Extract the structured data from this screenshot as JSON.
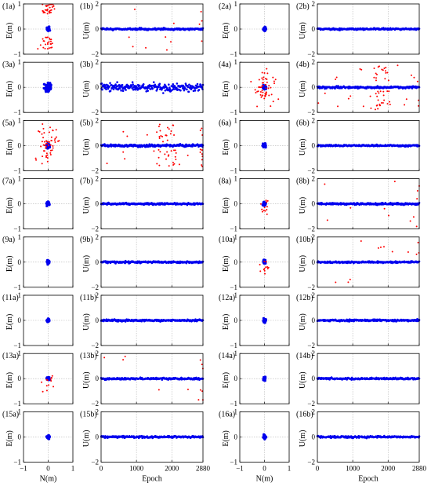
{
  "figure": {
    "background": "#ffffff",
    "axis_color": "#000000",
    "grid_color": "#b4b4b4",
    "data_color": "#0000ee",
    "outlier_color": "#ff0000",
    "column_pair_offsets": [
      "left",
      "right"
    ]
  },
  "labels": {
    "scatter_ylabel": "E(m)",
    "series_ylabel": "U(m)",
    "scatter_xlabel": "N(m)",
    "series_xlabel": "Epoch"
  },
  "ticks": {
    "scatter_x": [
      -1,
      0,
      1
    ],
    "scatter_y": [
      -1,
      0,
      1
    ],
    "series_x": [
      0,
      1000,
      2000,
      2880
    ],
    "series_y": [
      -2,
      0,
      2
    ]
  },
  "chart_data": [
    {
      "panel": "1a",
      "type": "scatter",
      "xlabel": "N(m)",
      "ylabel": "E(m)",
      "xlim": [
        -1,
        1
      ],
      "ylim": [
        -1,
        1
      ],
      "grid": true,
      "core_spread": 0.025,
      "outliers": "many"
    },
    {
      "panel": "1b",
      "type": "scatter",
      "xlabel": "Epoch",
      "ylabel": "U(m)",
      "xlim": [
        0,
        2880
      ],
      "ylim": [
        -2,
        2
      ],
      "grid": true,
      "band_halfwidth": 0.08,
      "outliers": "some"
    },
    {
      "panel": "2a",
      "type": "scatter",
      "xlabel": "N(m)",
      "ylabel": "E(m)",
      "xlim": [
        -1,
        1
      ],
      "ylim": [
        -1,
        1
      ],
      "grid": true,
      "core_spread": 0.025,
      "outliers": "none"
    },
    {
      "panel": "2b",
      "type": "scatter",
      "xlabel": "Epoch",
      "ylabel": "U(m)",
      "xlim": [
        0,
        2880
      ],
      "ylim": [
        -2,
        2
      ],
      "grid": true,
      "band_halfwidth": 0.08,
      "outliers": "none"
    },
    {
      "panel": "3a",
      "type": "scatter",
      "xlabel": "N(m)",
      "ylabel": "E(m)",
      "xlim": [
        -1,
        1
      ],
      "ylim": [
        -1,
        1
      ],
      "grid": true,
      "core_spread": 0.07,
      "outliers": "none"
    },
    {
      "panel": "3b",
      "type": "scatter",
      "xlabel": "Epoch",
      "ylabel": "U(m)",
      "xlim": [
        0,
        2880
      ],
      "ylim": [
        -2,
        2
      ],
      "grid": true,
      "band_halfwidth": 0.35,
      "outliers": "none"
    },
    {
      "panel": "4a",
      "type": "scatter",
      "xlabel": "N(m)",
      "ylabel": "E(m)",
      "xlim": [
        -1,
        1
      ],
      "ylim": [
        -1,
        1
      ],
      "grid": true,
      "core_spread": 0.03,
      "outliers": "many"
    },
    {
      "panel": "4b",
      "type": "scatter",
      "xlabel": "Epoch",
      "ylabel": "U(m)",
      "xlim": [
        0,
        2880
      ],
      "ylim": [
        -2,
        2
      ],
      "grid": true,
      "band_halfwidth": 0.1,
      "outliers": "many"
    },
    {
      "panel": "5a",
      "type": "scatter",
      "xlabel": "N(m)",
      "ylabel": "E(m)",
      "xlim": [
        -1,
        1
      ],
      "ylim": [
        -1,
        1
      ],
      "grid": true,
      "core_spread": 0.03,
      "outliers": "many"
    },
    {
      "panel": "5b",
      "type": "scatter",
      "xlabel": "Epoch",
      "ylabel": "U(m)",
      "xlim": [
        0,
        2880
      ],
      "ylim": [
        -2,
        2
      ],
      "grid": true,
      "band_halfwidth": 0.1,
      "outliers": "many"
    },
    {
      "panel": "6a",
      "type": "scatter",
      "xlabel": "N(m)",
      "ylabel": "E(m)",
      "xlim": [
        -1,
        1
      ],
      "ylim": [
        -1,
        1
      ],
      "grid": true,
      "core_spread": 0.025,
      "outliers": "none"
    },
    {
      "panel": "6b",
      "type": "scatter",
      "xlabel": "Epoch",
      "ylabel": "U(m)",
      "xlim": [
        0,
        2880
      ],
      "ylim": [
        -2,
        2
      ],
      "grid": true,
      "band_halfwidth": 0.08,
      "outliers": "none"
    },
    {
      "panel": "7a",
      "type": "scatter",
      "xlabel": "N(m)",
      "ylabel": "E(m)",
      "xlim": [
        -1,
        1
      ],
      "ylim": [
        -1,
        1
      ],
      "grid": true,
      "core_spread": 0.025,
      "outliers": "none"
    },
    {
      "panel": "7b",
      "type": "scatter",
      "xlabel": "Epoch",
      "ylabel": "U(m)",
      "xlim": [
        0,
        2880
      ],
      "ylim": [
        -2,
        2
      ],
      "grid": true,
      "band_halfwidth": 0.08,
      "outliers": "none"
    },
    {
      "panel": "8a",
      "type": "scatter",
      "xlabel": "N(m)",
      "ylabel": "E(m)",
      "xlim": [
        -1,
        1
      ],
      "ylim": [
        -1,
        1
      ],
      "grid": true,
      "core_spread": 0.025,
      "outliers": "some"
    },
    {
      "panel": "8b",
      "type": "scatter",
      "xlabel": "Epoch",
      "ylabel": "U(m)",
      "xlim": [
        0,
        2880
      ],
      "ylim": [
        -2,
        2
      ],
      "grid": true,
      "band_halfwidth": 0.08,
      "outliers": "some"
    },
    {
      "panel": "9a",
      "type": "scatter",
      "xlabel": "N(m)",
      "ylabel": "E(m)",
      "xlim": [
        -1,
        1
      ],
      "ylim": [
        -1,
        1
      ],
      "grid": true,
      "core_spread": 0.025,
      "outliers": "none"
    },
    {
      "panel": "9b",
      "type": "scatter",
      "xlabel": "Epoch",
      "ylabel": "U(m)",
      "xlim": [
        0,
        2880
      ],
      "ylim": [
        -2,
        2
      ],
      "grid": true,
      "band_halfwidth": 0.08,
      "outliers": "none"
    },
    {
      "panel": "10a",
      "type": "scatter",
      "xlabel": "N(m)",
      "ylabel": "E(m)",
      "xlim": [
        -1,
        1
      ],
      "ylim": [
        -1,
        1
      ],
      "grid": true,
      "core_spread": 0.025,
      "outliers": "some"
    },
    {
      "panel": "10b",
      "type": "scatter",
      "xlabel": "Epoch",
      "ylabel": "U(m)",
      "xlim": [
        0,
        2880
      ],
      "ylim": [
        -2,
        2
      ],
      "grid": true,
      "band_halfwidth": 0.08,
      "outliers": "some"
    },
    {
      "panel": "11a",
      "type": "scatter",
      "xlabel": "N(m)",
      "ylabel": "E(m)",
      "xlim": [
        -1,
        1
      ],
      "ylim": [
        -1,
        1
      ],
      "grid": true,
      "core_spread": 0.025,
      "outliers": "none"
    },
    {
      "panel": "11b",
      "type": "scatter",
      "xlabel": "Epoch",
      "ylabel": "U(m)",
      "xlim": [
        0,
        2880
      ],
      "ylim": [
        -2,
        2
      ],
      "grid": true,
      "band_halfwidth": 0.08,
      "outliers": "none"
    },
    {
      "panel": "12a",
      "type": "scatter",
      "xlabel": "N(m)",
      "ylabel": "E(m)",
      "xlim": [
        -1,
        1
      ],
      "ylim": [
        -1,
        1
      ],
      "grid": true,
      "core_spread": 0.025,
      "outliers": "none"
    },
    {
      "panel": "12b",
      "type": "scatter",
      "xlabel": "Epoch",
      "ylabel": "U(m)",
      "xlim": [
        0,
        2880
      ],
      "ylim": [
        -2,
        2
      ],
      "grid": true,
      "band_halfwidth": 0.08,
      "outliers": "none"
    },
    {
      "panel": "13a",
      "type": "scatter",
      "xlabel": "N(m)",
      "ylabel": "E(m)",
      "xlim": [
        -1,
        1
      ],
      "ylim": [
        -1,
        1
      ],
      "grid": true,
      "core_spread": 0.025,
      "outliers": "some"
    },
    {
      "panel": "13b",
      "type": "scatter",
      "xlabel": "Epoch",
      "ylabel": "U(m)",
      "xlim": [
        0,
        2880
      ],
      "ylim": [
        -2,
        2
      ],
      "grid": true,
      "band_halfwidth": 0.08,
      "outliers": "some"
    },
    {
      "panel": "14a",
      "type": "scatter",
      "xlabel": "N(m)",
      "ylabel": "E(m)",
      "xlim": [
        -1,
        1
      ],
      "ylim": [
        -1,
        1
      ],
      "grid": true,
      "core_spread": 0.025,
      "outliers": "none"
    },
    {
      "panel": "14b",
      "type": "scatter",
      "xlabel": "Epoch",
      "ylabel": "U(m)",
      "xlim": [
        0,
        2880
      ],
      "ylim": [
        -2,
        2
      ],
      "grid": true,
      "band_halfwidth": 0.08,
      "outliers": "none"
    },
    {
      "panel": "15a",
      "type": "scatter",
      "xlabel": "N(m)",
      "ylabel": "E(m)",
      "xlim": [
        -1,
        1
      ],
      "ylim": [
        -1,
        1
      ],
      "grid": true,
      "core_spread": 0.025,
      "outliers": "none"
    },
    {
      "panel": "15b",
      "type": "scatter",
      "xlabel": "Epoch",
      "ylabel": "U(m)",
      "xlim": [
        0,
        2880
      ],
      "ylim": [
        -2,
        2
      ],
      "grid": true,
      "band_halfwidth": 0.08,
      "outliers": "none"
    },
    {
      "panel": "16a",
      "type": "scatter",
      "xlabel": "N(m)",
      "ylabel": "E(m)",
      "xlim": [
        -1,
        1
      ],
      "ylim": [
        -1,
        1
      ],
      "grid": true,
      "core_spread": 0.025,
      "outliers": "none"
    },
    {
      "panel": "16b",
      "type": "scatter",
      "xlabel": "Epoch",
      "ylabel": "U(m)",
      "xlim": [
        0,
        2880
      ],
      "ylim": [
        -2,
        2
      ],
      "grid": true,
      "band_halfwidth": 0.08,
      "outliers": "none"
    }
  ]
}
